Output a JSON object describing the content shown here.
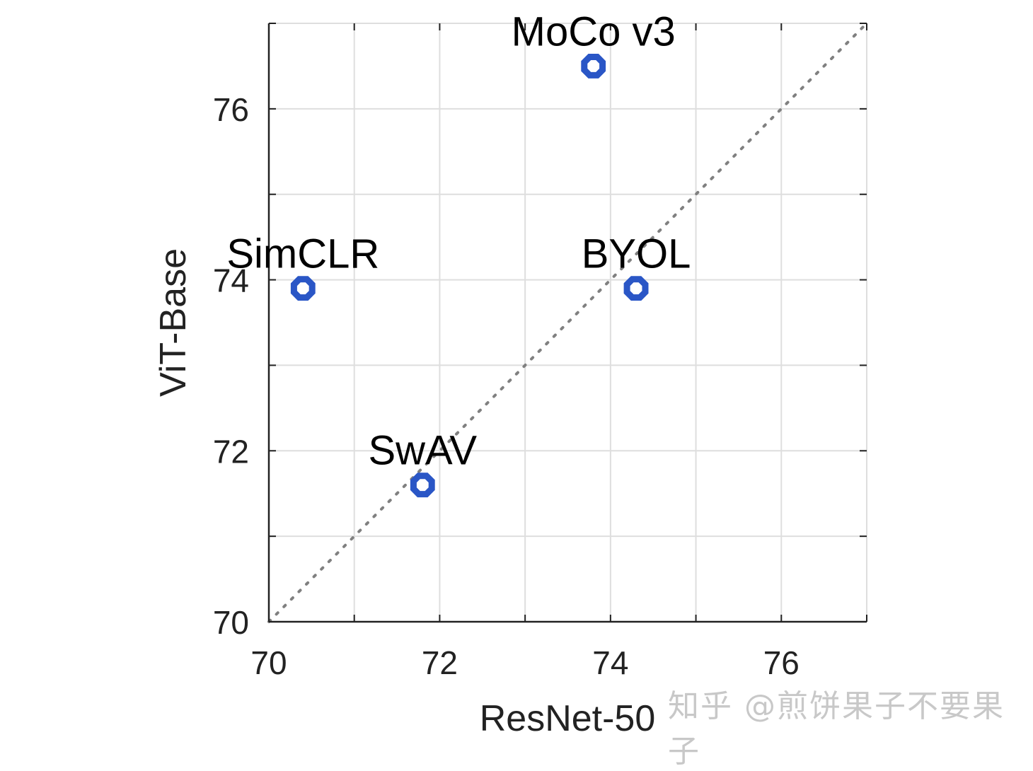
{
  "chart_data": {
    "type": "scatter",
    "title": "",
    "xlabel": "ResNet-50",
    "ylabel": "ViT-Base",
    "xlim": [
      70,
      77
    ],
    "ylim": [
      70,
      77
    ],
    "xticks": [
      70,
      72,
      74,
      76
    ],
    "yticks": [
      70,
      72,
      74,
      76
    ],
    "grid": true,
    "diagonal_reference_line": "y = x, dotted gray",
    "marker_color": "#2a56c6",
    "points": [
      {
        "label": "MoCo v3",
        "x": 73.8,
        "y": 76.5
      },
      {
        "label": "SimCLR",
        "x": 70.4,
        "y": 73.9
      },
      {
        "label": "BYOL",
        "x": 74.3,
        "y": 73.9
      },
      {
        "label": "SwAV",
        "x": 71.8,
        "y": 71.6
      }
    ]
  },
  "watermark": "知乎 @煎饼果子不要果子"
}
